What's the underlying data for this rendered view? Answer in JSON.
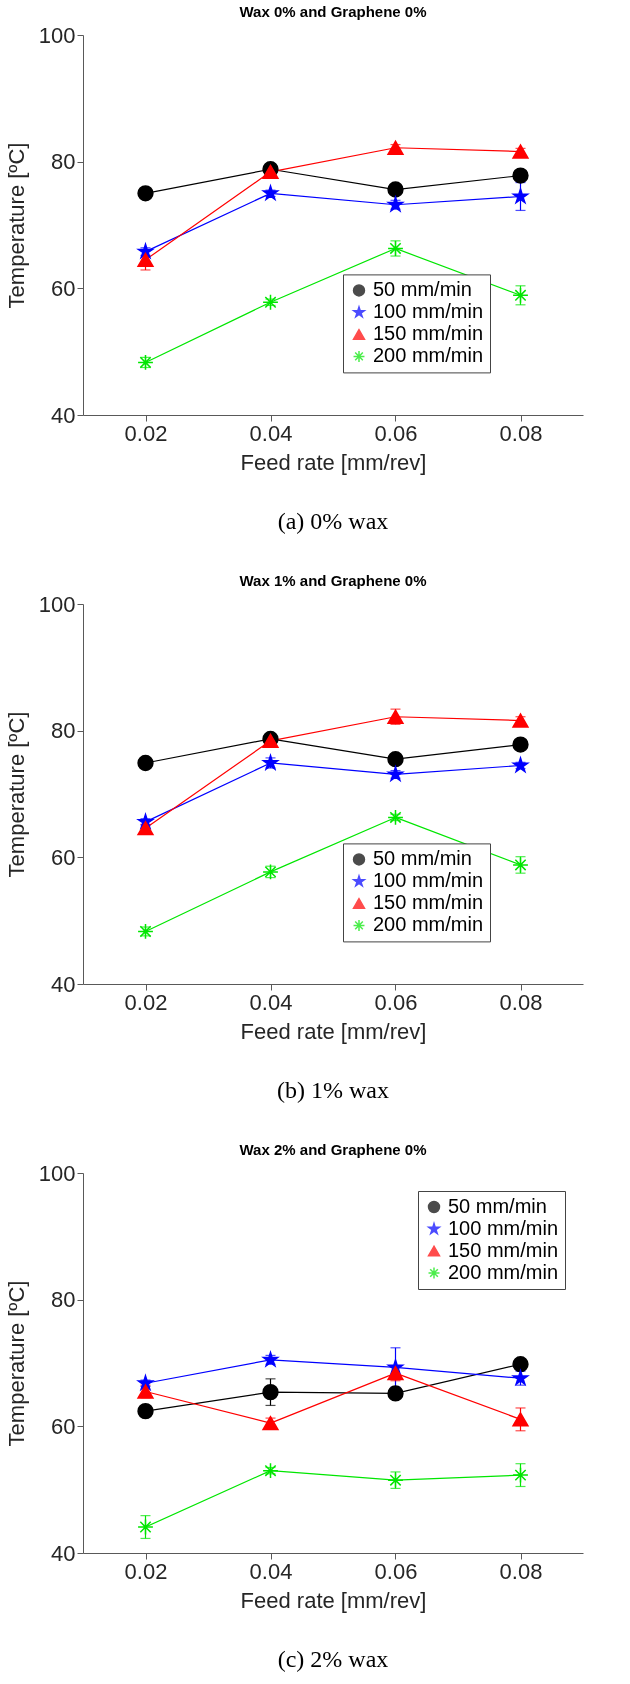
{
  "chart_data": [
    {
      "type": "line",
      "title": "Wax 0% and Graphene 0%",
      "xlabel": "Feed rate [mm/rev]",
      "ylabel": "Temperature [ºC]",
      "x": [
        0.02,
        0.04,
        0.06,
        0.08
      ],
      "xlim": [
        0.01,
        0.09
      ],
      "xticks": [
        0.02,
        0.04,
        0.06,
        0.08
      ],
      "ylim": [
        40,
        100
      ],
      "yticks": [
        40,
        60,
        80,
        100
      ],
      "legend": "bottom right",
      "grid": false,
      "annotations": [
        "(a) 0% wax"
      ],
      "series": [
        {
          "name": "50 mm/min",
          "color": "#000000",
          "marker": "circle",
          "values": [
            75.0,
            78.8,
            75.6,
            77.8
          ],
          "errors": [
            0.5,
            0.5,
            0.5,
            0.5
          ]
        },
        {
          "name": "100 mm/min",
          "color": "#0000ff",
          "marker": "star",
          "values": [
            65.8,
            75.0,
            73.2,
            74.5
          ],
          "errors": [
            0.6,
            0.5,
            0.7,
            2.2
          ]
        },
        {
          "name": "150 mm/min",
          "color": "#ff0000",
          "marker": "triangle",
          "values": [
            64.5,
            78.4,
            82.2,
            81.6
          ],
          "errors": [
            1.6,
            0.8,
            0.5,
            0.5
          ]
        },
        {
          "name": "200 mm/min",
          "color": "#00e600",
          "marker": "cross",
          "values": [
            48.3,
            57.8,
            66.3,
            58.9
          ],
          "errors": [
            0.8,
            0.5,
            1.2,
            1.5
          ]
        }
      ]
    },
    {
      "type": "line",
      "title": "Wax 1% and Graphene 0%",
      "xlabel": "Feed rate [mm/rev]",
      "ylabel": "Temperature [ºC]",
      "x": [
        0.02,
        0.04,
        0.06,
        0.08
      ],
      "xlim": [
        0.01,
        0.09
      ],
      "xticks": [
        0.02,
        0.04,
        0.06,
        0.08
      ],
      "ylim": [
        40,
        100
      ],
      "yticks": [
        40,
        60,
        80,
        100
      ],
      "legend": "bottom right",
      "grid": false,
      "annotations": [
        "(b) 1% wax"
      ],
      "series": [
        {
          "name": "50 mm/min",
          "color": "#000000",
          "marker": "circle",
          "values": [
            74.9,
            78.7,
            75.5,
            77.8
          ],
          "errors": [
            0.5,
            0.5,
            0.5,
            0.5
          ]
        },
        {
          "name": "100 mm/min",
          "color": "#0000ff",
          "marker": "star",
          "values": [
            65.6,
            74.9,
            73.1,
            74.5
          ],
          "errors": [
            0.5,
            0.8,
            0.6,
            0.5
          ]
        },
        {
          "name": "150 mm/min",
          "color": "#ff0000",
          "marker": "triangle",
          "values": [
            64.6,
            78.4,
            82.2,
            81.6
          ],
          "errors": [
            0.6,
            1.0,
            1.2,
            0.6
          ]
        },
        {
          "name": "200 mm/min",
          "color": "#00e600",
          "marker": "cross",
          "values": [
            48.3,
            57.7,
            66.3,
            58.8
          ],
          "errors": [
            0.7,
            0.9,
            0.5,
            1.3
          ]
        }
      ]
    },
    {
      "type": "line",
      "title": "Wax 2% and Graphene 0%",
      "xlabel": "Feed rate [mm/rev]",
      "ylabel": "Temperature [ºC]",
      "x": [
        0.02,
        0.04,
        0.06,
        0.08
      ],
      "xlim": [
        0.01,
        0.09
      ],
      "xticks": [
        0.02,
        0.04,
        0.06,
        0.08
      ],
      "ylim": [
        40,
        100
      ],
      "yticks": [
        40,
        60,
        80,
        100
      ],
      "legend": "top right",
      "grid": false,
      "annotations": [
        "(c) 2% wax"
      ],
      "series": [
        {
          "name": "50 mm/min",
          "color": "#000000",
          "marker": "circle",
          "values": [
            62.4,
            65.4,
            65.2,
            69.8
          ],
          "errors": [
            0.5,
            2.1,
            0.7,
            0.8
          ]
        },
        {
          "name": "100 mm/min",
          "color": "#0000ff",
          "marker": "star",
          "values": [
            66.8,
            70.5,
            69.3,
            67.6
          ],
          "errors": [
            0.5,
            0.7,
            3.1,
            1.1
          ]
        },
        {
          "name": "150 mm/min",
          "color": "#ff0000",
          "marker": "triangle",
          "values": [
            65.5,
            60.5,
            68.4,
            61.1
          ],
          "errors": [
            1.0,
            0.8,
            1.2,
            1.8
          ]
        },
        {
          "name": "200 mm/min",
          "color": "#00e600",
          "marker": "cross",
          "values": [
            44.1,
            53.0,
            51.5,
            52.3
          ],
          "errors": [
            1.8,
            0.5,
            1.3,
            1.8
          ]
        }
      ]
    }
  ]
}
